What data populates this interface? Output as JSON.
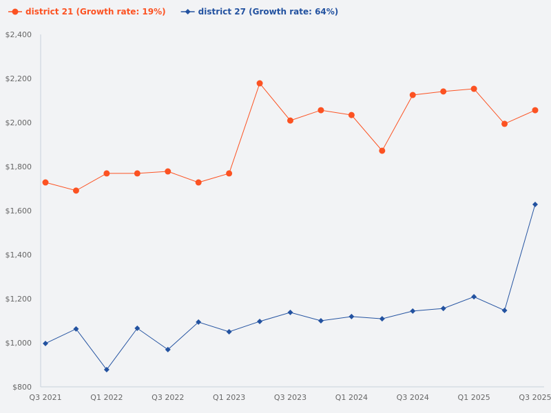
{
  "chart_data": {
    "type": "line",
    "title": "",
    "xlabel": "",
    "ylabel": "",
    "ylim": [
      800,
      2400
    ],
    "yticks": [
      "$800",
      "$1,000",
      "$1,200",
      "$1,400",
      "$1,600",
      "$1,800",
      "$2,000",
      "$2,200",
      "$2,400"
    ],
    "ytick_values": [
      800,
      1000,
      1200,
      1400,
      1600,
      1800,
      2000,
      2200,
      2400
    ],
    "x": [
      "Q3 2021",
      "Q4 2021",
      "Q1 2022",
      "Q2 2022",
      "Q3 2022",
      "Q4 2022",
      "Q1 2023",
      "Q2 2023",
      "Q3 2023",
      "Q4 2023",
      "Q1 2024",
      "Q2 2024",
      "Q3 2024",
      "Q4 2024",
      "Q1 2025",
      "Q2 2025",
      "Q3 2025"
    ],
    "xticks": [
      "Q3 2021",
      "Q1 2022",
      "Q3 2022",
      "Q1 2023",
      "Q3 2023",
      "Q1 2024",
      "Q3 2024",
      "Q1 2025",
      "Q3 2025"
    ],
    "grid": false,
    "legend_position": "top-left",
    "series": [
      {
        "name": "district 21 (Growth rate: 19%)",
        "color": "#fc5222",
        "marker": "circle",
        "values": [
          1728,
          1691,
          1769,
          1769,
          1778,
          1728,
          1769,
          2178,
          2009,
          2056,
          2034,
          1872,
          2125,
          2141,
          2153,
          1994,
          2056
        ]
      },
      {
        "name": "district 27 (Growth rate: 64%)",
        "color": "#2352a0",
        "marker": "diamond",
        "values": [
          997,
          1063,
          878,
          1066,
          969,
          1094,
          1050,
          1097,
          1138,
          1100,
          1119,
          1109,
          1144,
          1156,
          1209,
          1147,
          1628
        ]
      }
    ]
  }
}
